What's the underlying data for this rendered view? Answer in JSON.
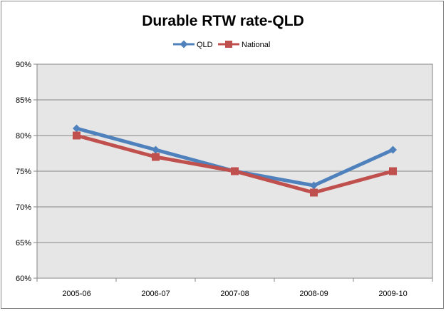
{
  "chart_data": {
    "type": "line",
    "title": "Durable RTW rate-QLD",
    "categories": [
      "2005-06",
      "2006-07",
      "2007-08",
      "2008-09",
      "2009-10"
    ],
    "series": [
      {
        "name": "QLD",
        "values": [
          81,
          78,
          75,
          73,
          78
        ],
        "color": "#4F81BD",
        "marker": "diamond"
      },
      {
        "name": "National",
        "values": [
          80,
          77,
          75,
          72,
          75
        ],
        "color": "#C0504D",
        "marker": "square"
      }
    ],
    "ylim": [
      60,
      90
    ],
    "yticks": [
      60,
      65,
      70,
      75,
      80,
      85,
      90
    ],
    "ytick_labels": [
      "60%",
      "65%",
      "70%",
      "75%",
      "80%",
      "85%",
      "90%"
    ],
    "y_unit": "%",
    "grid": true,
    "plot_background": "#E6E6E6",
    "legend_position": "top"
  }
}
